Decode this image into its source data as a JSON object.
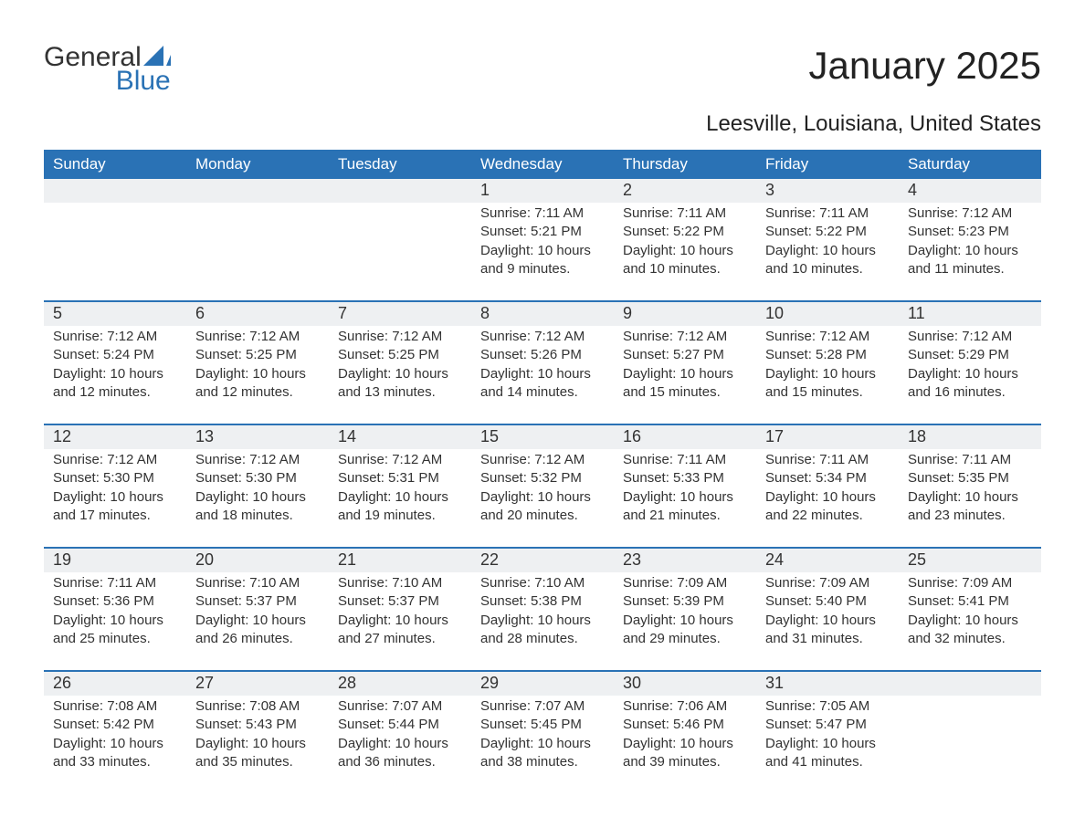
{
  "logo": {
    "text_a": "General",
    "text_b": "Blue",
    "accent_color": "#2a72b5",
    "text_color": "#333333"
  },
  "header": {
    "title": "January 2025",
    "subtitle": "Leesville, Louisiana, United States"
  },
  "colors": {
    "header_bg": "#2a72b5",
    "header_text": "#ffffff",
    "row_divider": "#2a72b5",
    "daynum_bg": "#eef0f2",
    "body_text": "#333333",
    "page_bg": "#ffffff"
  },
  "weekdays": [
    "Sunday",
    "Monday",
    "Tuesday",
    "Wednesday",
    "Thursday",
    "Friday",
    "Saturday"
  ],
  "weeks": [
    [
      {
        "day": "",
        "sunrise": "",
        "sunset": "",
        "daylight": ""
      },
      {
        "day": "",
        "sunrise": "",
        "sunset": "",
        "daylight": ""
      },
      {
        "day": "",
        "sunrise": "",
        "sunset": "",
        "daylight": ""
      },
      {
        "day": "1",
        "sunrise": "Sunrise: 7:11 AM",
        "sunset": "Sunset: 5:21 PM",
        "daylight": "Daylight: 10 hours and 9 minutes."
      },
      {
        "day": "2",
        "sunrise": "Sunrise: 7:11 AM",
        "sunset": "Sunset: 5:22 PM",
        "daylight": "Daylight: 10 hours and 10 minutes."
      },
      {
        "day": "3",
        "sunrise": "Sunrise: 7:11 AM",
        "sunset": "Sunset: 5:22 PM",
        "daylight": "Daylight: 10 hours and 10 minutes."
      },
      {
        "day": "4",
        "sunrise": "Sunrise: 7:12 AM",
        "sunset": "Sunset: 5:23 PM",
        "daylight": "Daylight: 10 hours and 11 minutes."
      }
    ],
    [
      {
        "day": "5",
        "sunrise": "Sunrise: 7:12 AM",
        "sunset": "Sunset: 5:24 PM",
        "daylight": "Daylight: 10 hours and 12 minutes."
      },
      {
        "day": "6",
        "sunrise": "Sunrise: 7:12 AM",
        "sunset": "Sunset: 5:25 PM",
        "daylight": "Daylight: 10 hours and 12 minutes."
      },
      {
        "day": "7",
        "sunrise": "Sunrise: 7:12 AM",
        "sunset": "Sunset: 5:25 PM",
        "daylight": "Daylight: 10 hours and 13 minutes."
      },
      {
        "day": "8",
        "sunrise": "Sunrise: 7:12 AM",
        "sunset": "Sunset: 5:26 PM",
        "daylight": "Daylight: 10 hours and 14 minutes."
      },
      {
        "day": "9",
        "sunrise": "Sunrise: 7:12 AM",
        "sunset": "Sunset: 5:27 PM",
        "daylight": "Daylight: 10 hours and 15 minutes."
      },
      {
        "day": "10",
        "sunrise": "Sunrise: 7:12 AM",
        "sunset": "Sunset: 5:28 PM",
        "daylight": "Daylight: 10 hours and 15 minutes."
      },
      {
        "day": "11",
        "sunrise": "Sunrise: 7:12 AM",
        "sunset": "Sunset: 5:29 PM",
        "daylight": "Daylight: 10 hours and 16 minutes."
      }
    ],
    [
      {
        "day": "12",
        "sunrise": "Sunrise: 7:12 AM",
        "sunset": "Sunset: 5:30 PM",
        "daylight": "Daylight: 10 hours and 17 minutes."
      },
      {
        "day": "13",
        "sunrise": "Sunrise: 7:12 AM",
        "sunset": "Sunset: 5:30 PM",
        "daylight": "Daylight: 10 hours and 18 minutes."
      },
      {
        "day": "14",
        "sunrise": "Sunrise: 7:12 AM",
        "sunset": "Sunset: 5:31 PM",
        "daylight": "Daylight: 10 hours and 19 minutes."
      },
      {
        "day": "15",
        "sunrise": "Sunrise: 7:12 AM",
        "sunset": "Sunset: 5:32 PM",
        "daylight": "Daylight: 10 hours and 20 minutes."
      },
      {
        "day": "16",
        "sunrise": "Sunrise: 7:11 AM",
        "sunset": "Sunset: 5:33 PM",
        "daylight": "Daylight: 10 hours and 21 minutes."
      },
      {
        "day": "17",
        "sunrise": "Sunrise: 7:11 AM",
        "sunset": "Sunset: 5:34 PM",
        "daylight": "Daylight: 10 hours and 22 minutes."
      },
      {
        "day": "18",
        "sunrise": "Sunrise: 7:11 AM",
        "sunset": "Sunset: 5:35 PM",
        "daylight": "Daylight: 10 hours and 23 minutes."
      }
    ],
    [
      {
        "day": "19",
        "sunrise": "Sunrise: 7:11 AM",
        "sunset": "Sunset: 5:36 PM",
        "daylight": "Daylight: 10 hours and 25 minutes."
      },
      {
        "day": "20",
        "sunrise": "Sunrise: 7:10 AM",
        "sunset": "Sunset: 5:37 PM",
        "daylight": "Daylight: 10 hours and 26 minutes."
      },
      {
        "day": "21",
        "sunrise": "Sunrise: 7:10 AM",
        "sunset": "Sunset: 5:37 PM",
        "daylight": "Daylight: 10 hours and 27 minutes."
      },
      {
        "day": "22",
        "sunrise": "Sunrise: 7:10 AM",
        "sunset": "Sunset: 5:38 PM",
        "daylight": "Daylight: 10 hours and 28 minutes."
      },
      {
        "day": "23",
        "sunrise": "Sunrise: 7:09 AM",
        "sunset": "Sunset: 5:39 PM",
        "daylight": "Daylight: 10 hours and 29 minutes."
      },
      {
        "day": "24",
        "sunrise": "Sunrise: 7:09 AM",
        "sunset": "Sunset: 5:40 PM",
        "daylight": "Daylight: 10 hours and 31 minutes."
      },
      {
        "day": "25",
        "sunrise": "Sunrise: 7:09 AM",
        "sunset": "Sunset: 5:41 PM",
        "daylight": "Daylight: 10 hours and 32 minutes."
      }
    ],
    [
      {
        "day": "26",
        "sunrise": "Sunrise: 7:08 AM",
        "sunset": "Sunset: 5:42 PM",
        "daylight": "Daylight: 10 hours and 33 minutes."
      },
      {
        "day": "27",
        "sunrise": "Sunrise: 7:08 AM",
        "sunset": "Sunset: 5:43 PM",
        "daylight": "Daylight: 10 hours and 35 minutes."
      },
      {
        "day": "28",
        "sunrise": "Sunrise: 7:07 AM",
        "sunset": "Sunset: 5:44 PM",
        "daylight": "Daylight: 10 hours and 36 minutes."
      },
      {
        "day": "29",
        "sunrise": "Sunrise: 7:07 AM",
        "sunset": "Sunset: 5:45 PM",
        "daylight": "Daylight: 10 hours and 38 minutes."
      },
      {
        "day": "30",
        "sunrise": "Sunrise: 7:06 AM",
        "sunset": "Sunset: 5:46 PM",
        "daylight": "Daylight: 10 hours and 39 minutes."
      },
      {
        "day": "31",
        "sunrise": "Sunrise: 7:05 AM",
        "sunset": "Sunset: 5:47 PM",
        "daylight": "Daylight: 10 hours and 41 minutes."
      },
      {
        "day": "",
        "sunrise": "",
        "sunset": "",
        "daylight": ""
      }
    ]
  ]
}
